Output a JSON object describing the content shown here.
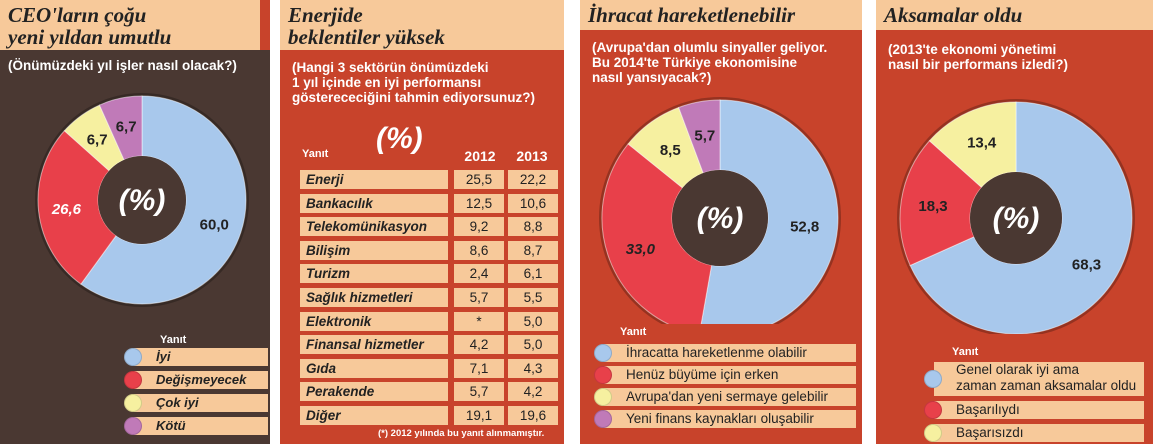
{
  "panels": [
    {
      "title": "CEO'ların çoğu yeni yıldan umutlu",
      "title_lines": [
        "CEO'ların çoğu",
        "yeni yıldan umutlu"
      ],
      "question": "(Önümüzdeki yıl işler nasıl olacak?)",
      "center_label": "(%)",
      "legend_title": "Yanıt"
    },
    {
      "title_lines": [
        "Enerjide",
        "beklentiler yüksek"
      ],
      "question_lines": [
        "(Hangi 3 sektörün önümüzdeki",
        "1 yıl içinde en iyi performansı",
        "gösterececiğini tahmin ediyorsunuz?)"
      ],
      "unit_label": "(%)",
      "footnote": "(*) 2012 yılında bu yanıt alınmamıştır."
    },
    {
      "title": "İhracat hareketlenebilir",
      "question_lines": [
        "(Avrupa'dan olumlu sinyaller geliyor.",
        "Bu 2014'te Türkiye ekonomisine",
        "nasıl yansıyacak?)"
      ],
      "center_label": "(%)",
      "legend_title": "Yanıt"
    },
    {
      "title": "Aksamalar oldu",
      "question_lines": [
        "(2013'te ekonomi yönetimi",
        "nasıl bir performans izledi?)"
      ],
      "center_label": "(%)",
      "legend_title": "Yanıt"
    }
  ],
  "colors": {
    "panel1_bg": "#4a3832",
    "panel_bg": "#c8432b",
    "title_bg": "#f7c99a",
    "blue": "#a8c8ec",
    "red": "#e8404a",
    "yellow": "#f6f0a0",
    "purple": "#c07ab8",
    "donut_hole": "#4a3832"
  },
  "chart_data": [
    {
      "type": "pie",
      "title": "CEO'ların çoğu yeni yıldan umutlu",
      "categories": [
        "İyi",
        "Değişmeyecek",
        "Çok iyi",
        "Kötü"
      ],
      "values": [
        60.0,
        26.6,
        6.7,
        6.7
      ],
      "value_labels": [
        "60,0",
        "26,6",
        "6,7",
        "6,7"
      ],
      "colors": [
        "#a8c8ec",
        "#e8404a",
        "#f6f0a0",
        "#c07ab8"
      ]
    },
    {
      "type": "table",
      "title": "Enerjide beklentiler yüksek",
      "columns": [
        "Yanıt",
        "2012",
        "2013"
      ],
      "rows": [
        [
          "Enerji",
          "25,5",
          "22,2"
        ],
        [
          "Bankacılık",
          "12,5",
          "10,6"
        ],
        [
          "Telekomünikasyon",
          "9,2",
          "8,8"
        ],
        [
          "Bilişim",
          "8,6",
          "8,7"
        ],
        [
          "Turizm",
          "2,4",
          "6,1"
        ],
        [
          "Sağlık hizmetleri",
          "5,7",
          "5,5"
        ],
        [
          "Elektronik",
          "*",
          "5,0"
        ],
        [
          "Finansal hizmetler",
          "4,2",
          "5,0"
        ],
        [
          "Gıda",
          "7,1",
          "4,3"
        ],
        [
          "Perakende",
          "5,7",
          "4,2"
        ],
        [
          "Diğer",
          "19,1",
          "19,6"
        ]
      ]
    },
    {
      "type": "pie",
      "title": "İhracat hareketlenebilir",
      "categories": [
        "İhracatta hareketlenme olabilir",
        "Henüz büyüme için erken",
        "Avrupa'dan yeni sermaye gelebilir",
        "Yeni finans kaynakları oluşabilir"
      ],
      "values": [
        52.8,
        33.0,
        8.5,
        5.7
      ],
      "value_labels": [
        "52,8",
        "33,0",
        "8,5",
        "5,7"
      ],
      "colors": [
        "#a8c8ec",
        "#e8404a",
        "#f6f0a0",
        "#c07ab8"
      ]
    },
    {
      "type": "pie",
      "title": "Aksamalar oldu",
      "categories": [
        "Genel olarak iyi ama zaman zaman aksamalar oldu",
        "Başarılıydı",
        "Başarısızdı"
      ],
      "legend_lines": [
        [
          "Genel olarak iyi ama",
          "zaman zaman aksamalar oldu"
        ],
        [
          "Başarılıydı"
        ],
        [
          "Başarısızdı"
        ]
      ],
      "values": [
        68.3,
        18.3,
        13.4
      ],
      "value_labels": [
        "68,3",
        "18,3",
        "13,4"
      ],
      "colors": [
        "#a8c8ec",
        "#e8404a",
        "#f6f0a0"
      ]
    }
  ]
}
